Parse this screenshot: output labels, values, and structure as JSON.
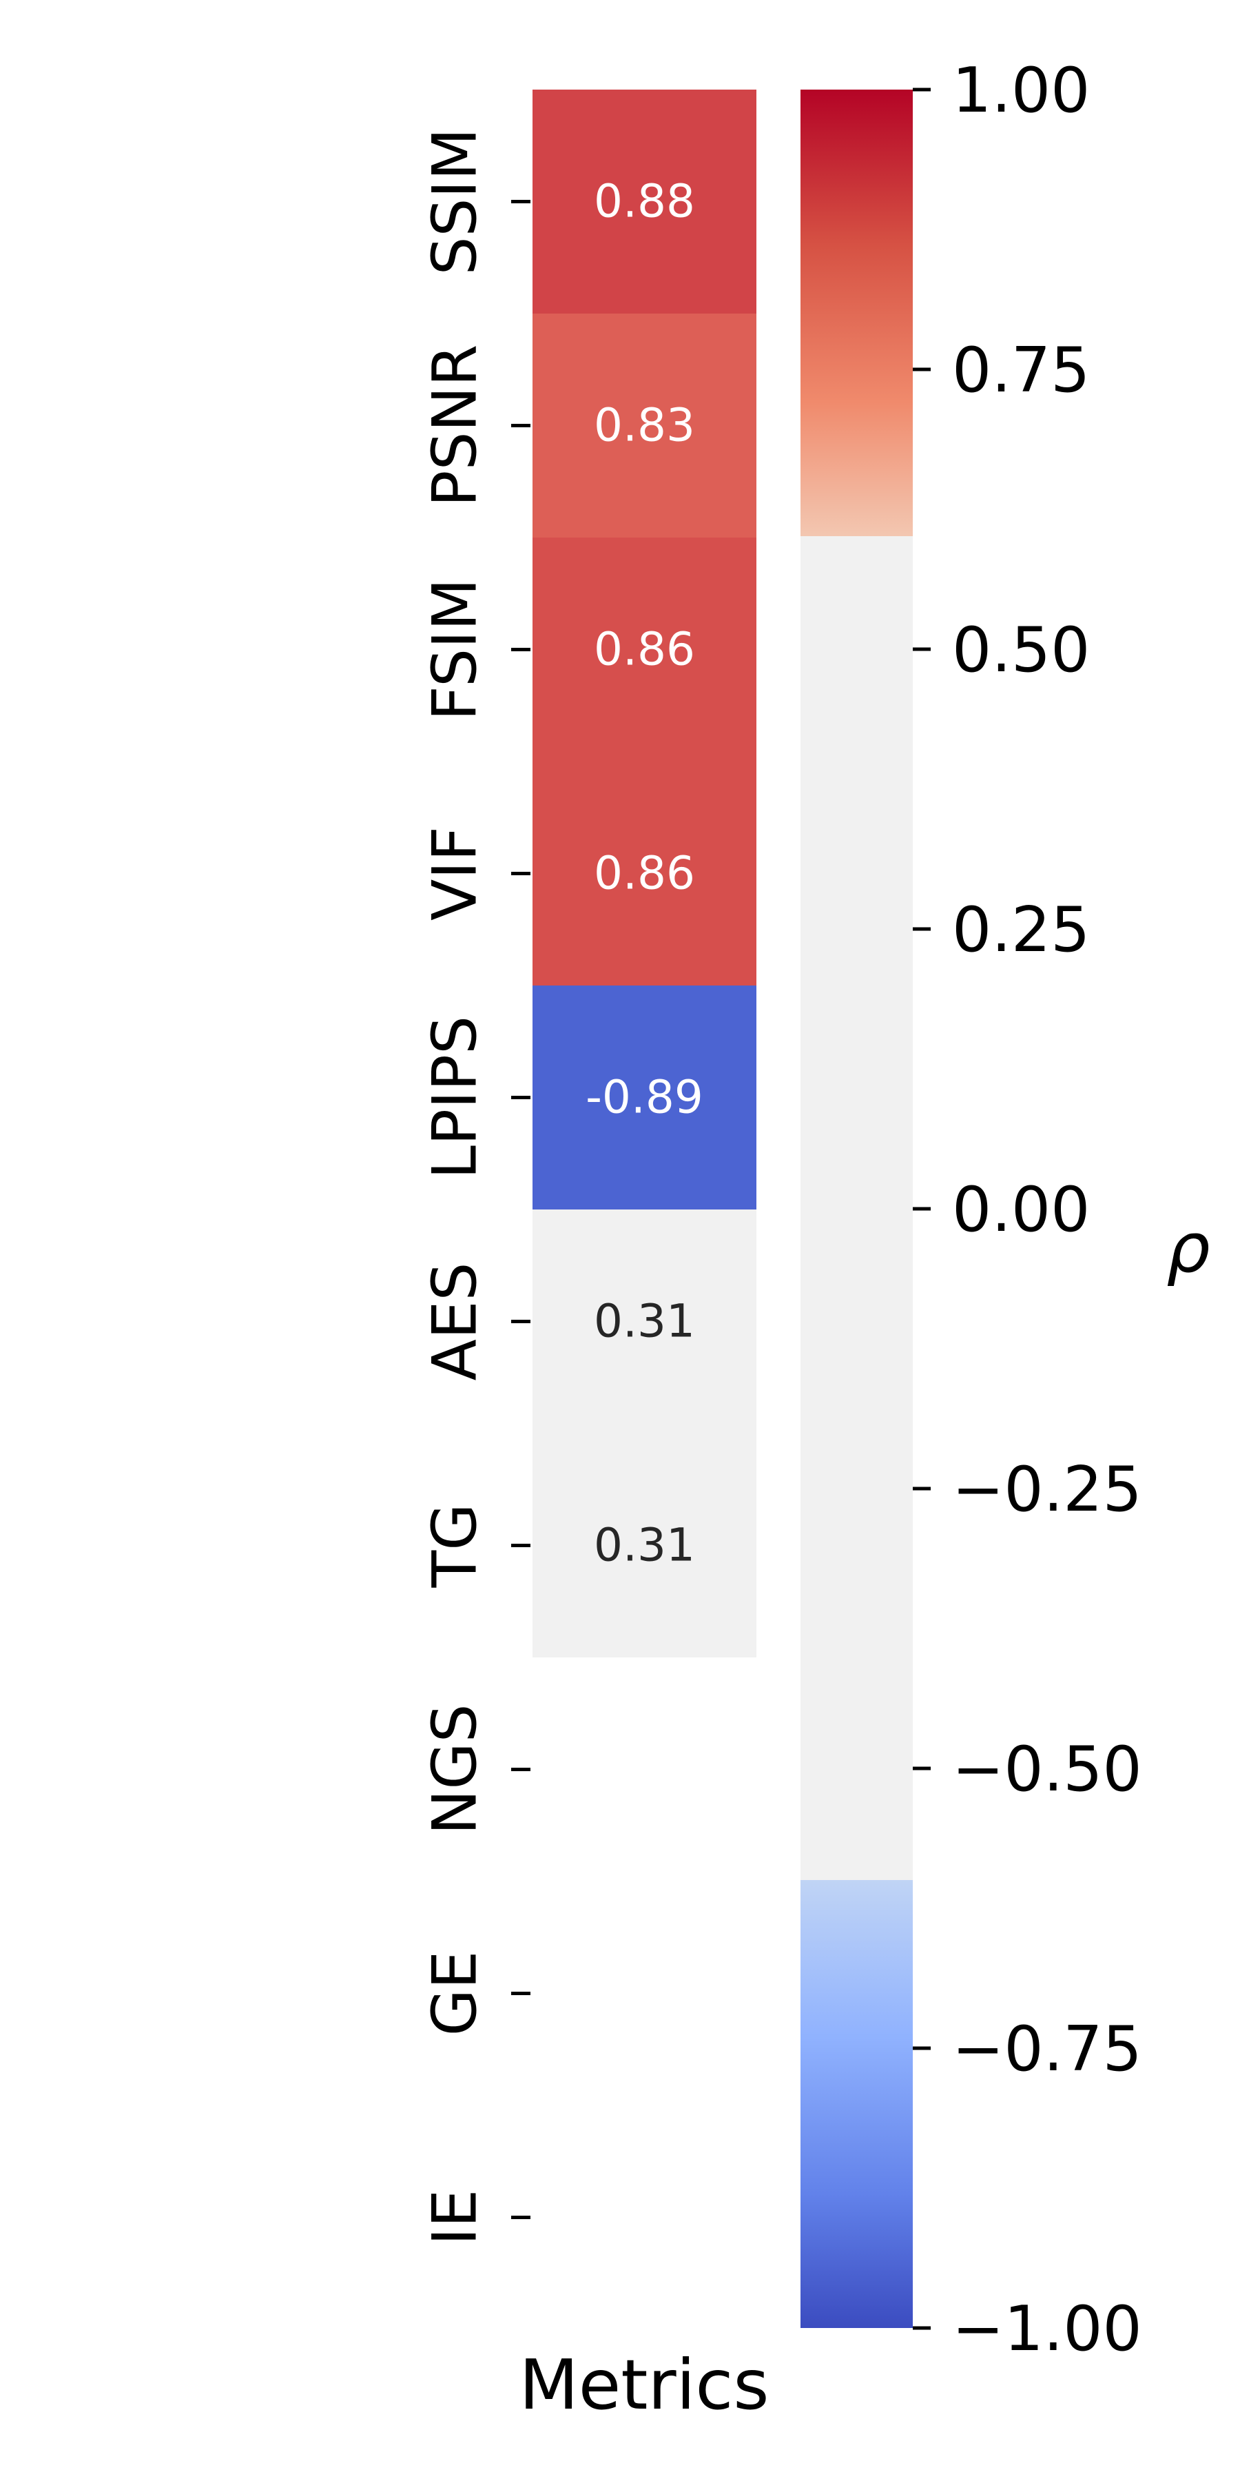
{
  "chart_data": {
    "type": "heatmap",
    "title": "",
    "xlabel": "Metrics",
    "ylabel": "",
    "rows": [
      "SSIM",
      "PSNR",
      "FSIM",
      "VIF",
      "LPIPS",
      "AES",
      "TG",
      "NGS",
      "GE",
      "IE"
    ],
    "values": [
      0.88,
      0.83,
      0.86,
      0.86,
      -0.89,
      0.31,
      0.31,
      null,
      null,
      null
    ],
    "cell_labels": [
      "0.88",
      "0.83",
      "0.86",
      "0.86",
      "-0.89",
      "0.31",
      "0.31",
      "",
      "",
      ""
    ],
    "colorbar": {
      "label": "ρ",
      "vmin": -1.0,
      "vmax": 1.0,
      "ticks": [
        1.0,
        0.75,
        0.5,
        0.25,
        0.0,
        -0.25,
        -0.5,
        -0.75,
        -1.0
      ],
      "tick_labels": [
        "1.00",
        "0.75",
        "0.50",
        "0.25",
        "0.00",
        "−0.25",
        "−0.50",
        "−0.75",
        "−1.00"
      ],
      "colormap": "coolwarm, values between -0.6 and 0.6 shown as light gray"
    },
    "colors": {
      "neutral": "#f1f1f1",
      "high": "#b40426",
      "low": "#3b4cc0"
    },
    "grid": false,
    "legend": "colorbar right"
  }
}
